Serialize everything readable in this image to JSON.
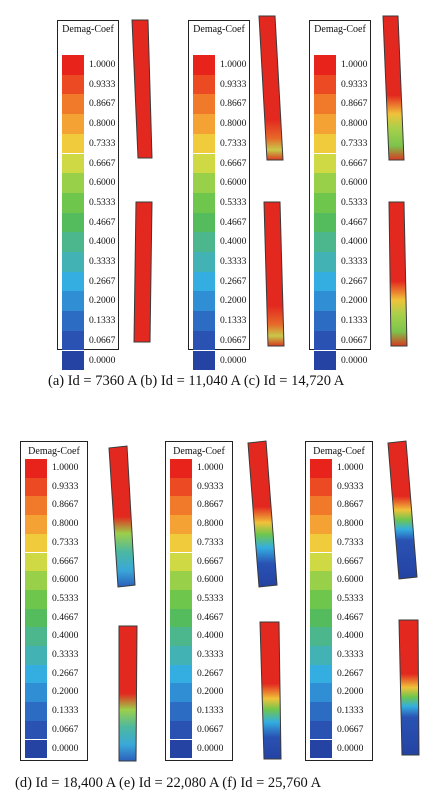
{
  "legend": {
    "title": "Demag-Coef",
    "ticks": [
      "1.0000",
      "0.9333",
      "0.8667",
      "0.8000",
      "0.7333",
      "0.6667",
      "0.6000",
      "0.5333",
      "0.4667",
      "0.4000",
      "0.3333",
      "0.2667",
      "0.2000",
      "0.1333",
      "0.0667",
      "0.0000"
    ],
    "colors": [
      "#e8231b",
      "#ec4a22",
      "#f1792a",
      "#f3a233",
      "#f0cc3d",
      "#cfd944",
      "#98d04a",
      "#6ec64d",
      "#55bc5e",
      "#4cb78c",
      "#42b2b4",
      "#34aee0",
      "#2f8ed4",
      "#2c6cc2",
      "#2952b3",
      "#2443a3"
    ]
  },
  "captions": {
    "row1": "(a) Id = 7360 A  (b) Id = 11,040 A (c) Id = 14,720 A",
    "row2": "(d) Id = 18,400 A  (e) Id = 22,080 A  (f) Id = 25,760 A"
  },
  "panels": [
    {
      "id": "a",
      "label": "(a) Id = 7360 A",
      "demag_level": "none"
    },
    {
      "id": "b",
      "label": "(b) Id = 11,040 A",
      "demag_level": "slight"
    },
    {
      "id": "c",
      "label": "(c) Id = 14,720 A",
      "demag_level": "moderate"
    },
    {
      "id": "d",
      "label": "(d) Id = 18,400 A",
      "demag_level": "significant"
    },
    {
      "id": "e",
      "label": "(e) Id = 22,080 A",
      "demag_level": "heavy"
    },
    {
      "id": "f",
      "label": "(f) Id = 25,760 A",
      "demag_level": "severe"
    }
  ]
}
